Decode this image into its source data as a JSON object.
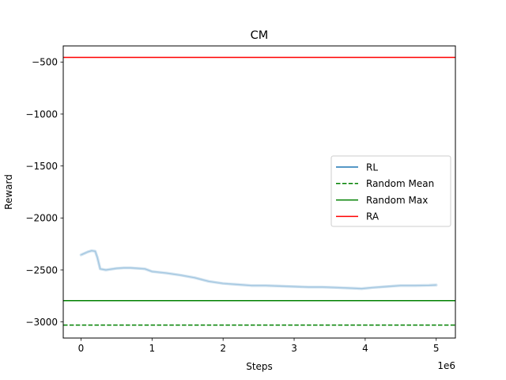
{
  "chart_data": {
    "type": "line",
    "title": "CM",
    "xlabel": "Steps",
    "ylabel": "Reward",
    "x_offset_label": "1e6",
    "xlim": [
      -0.25,
      5.27
    ],
    "ylim": [
      -3155,
      -345
    ],
    "x_ticks": [
      0,
      1,
      2,
      3,
      4,
      5
    ],
    "x_tick_labels": [
      "0",
      "1",
      "2",
      "3",
      "4",
      "5"
    ],
    "y_ticks": [
      -500,
      -1000,
      -1500,
      -2000,
      -2500,
      -3000
    ],
    "y_tick_labels": [
      "−500",
      "−1000",
      "−1500",
      "−2000",
      "−2500",
      "−3000"
    ],
    "grid": false,
    "legend_position": "center-right",
    "series": [
      {
        "name": "RL",
        "color": "#1f77b4",
        "style": "solid",
        "band": true,
        "x": [
          0.0,
          0.05,
          0.1,
          0.15,
          0.2,
          0.23,
          0.27,
          0.35,
          0.5,
          0.6,
          0.7,
          0.8,
          0.9,
          1.0,
          1.2,
          1.4,
          1.6,
          1.8,
          2.0,
          2.2,
          2.4,
          2.6,
          2.8,
          3.0,
          3.2,
          3.4,
          3.6,
          3.8,
          3.95,
          4.1,
          4.3,
          4.5,
          4.7,
          4.9,
          5.0
        ],
        "y": [
          -2355,
          -2340,
          -2325,
          -2315,
          -2320,
          -2380,
          -2490,
          -2500,
          -2485,
          -2480,
          -2480,
          -2485,
          -2490,
          -2515,
          -2530,
          -2550,
          -2575,
          -2610,
          -2630,
          -2640,
          -2650,
          -2650,
          -2655,
          -2660,
          -2665,
          -2665,
          -2670,
          -2675,
          -2680,
          -2670,
          -2660,
          -2650,
          -2650,
          -2648,
          -2645
        ]
      },
      {
        "name": "Random Mean",
        "color": "#008000",
        "style": "dashed",
        "constant": -3030
      },
      {
        "name": "Random Max",
        "color": "#008000",
        "style": "solid",
        "constant": -2795
      },
      {
        "name": "RA",
        "color": "#ff0000",
        "style": "solid",
        "constant": -455
      }
    ]
  }
}
